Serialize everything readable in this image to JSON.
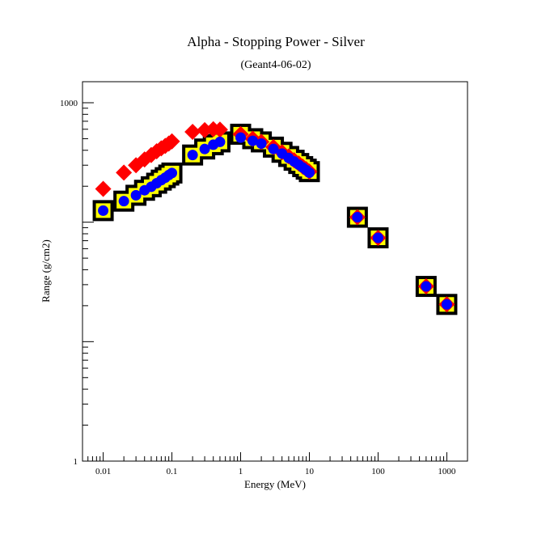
{
  "chart_data": {
    "type": "scatter",
    "title": "Alpha - Stopping Power - Silver",
    "subtitle": "(Geant4-06-02)",
    "xlabel": "Energy (MeV)",
    "ylabel": "Range (g/cm2)",
    "x_scale": "log",
    "y_scale": "log",
    "xlim": [
      0.005,
      2000
    ],
    "ylim": [
      1,
      1500
    ],
    "x_tick_labels": [
      {
        "value": 0.01,
        "label": "0.01"
      },
      {
        "value": 0.1,
        "label": "0.1"
      },
      {
        "value": 1,
        "label": "1"
      },
      {
        "value": 10,
        "label": "10"
      },
      {
        "value": 100,
        "label": "100"
      },
      {
        "value": 1000,
        "label": "1000"
      }
    ],
    "y_tick_labels": [
      {
        "value": 1,
        "label": "1"
      },
      {
        "value": 1000,
        "label": "1000"
      }
    ],
    "grid": false,
    "legend": "none",
    "series": [
      {
        "marker": "square",
        "fill": "#ffff00",
        "stroke": "#000000",
        "points": [
          [
            0.01,
            125
          ],
          [
            0.02,
            150
          ],
          [
            0.03,
            168
          ],
          [
            0.04,
            185
          ],
          [
            0.05,
            198
          ],
          [
            0.06,
            212
          ],
          [
            0.07,
            225
          ],
          [
            0.08,
            236
          ],
          [
            0.09,
            248
          ],
          [
            0.1,
            258
          ],
          [
            0.2,
            365
          ],
          [
            0.3,
            410
          ],
          [
            0.4,
            445
          ],
          [
            0.5,
            470
          ],
          [
            1,
            545
          ],
          [
            1.5,
            500
          ],
          [
            2,
            470
          ],
          [
            3,
            425
          ],
          [
            4,
            385
          ],
          [
            5,
            355
          ],
          [
            6,
            330
          ],
          [
            7,
            310
          ],
          [
            8,
            292
          ],
          [
            9,
            278
          ],
          [
            10,
            265
          ],
          [
            50,
            110
          ],
          [
            100,
            74
          ],
          [
            500,
            29
          ],
          [
            1000,
            20.5
          ]
        ]
      },
      {
        "marker": "diamond",
        "fill": "#ff0000",
        "points": [
          [
            0.01,
            190
          ],
          [
            0.02,
            260
          ],
          [
            0.03,
            300
          ],
          [
            0.04,
            335
          ],
          [
            0.05,
            365
          ],
          [
            0.06,
            392
          ],
          [
            0.07,
            415
          ],
          [
            0.08,
            435
          ],
          [
            0.09,
            455
          ],
          [
            0.1,
            475
          ],
          [
            0.2,
            570
          ],
          [
            0.3,
            590
          ],
          [
            0.4,
            600
          ],
          [
            0.5,
            595
          ],
          [
            1,
            545
          ],
          [
            1.5,
            500
          ],
          [
            2,
            470
          ],
          [
            3,
            425
          ],
          [
            4,
            385
          ],
          [
            5,
            355
          ],
          [
            6,
            330
          ],
          [
            7,
            310
          ],
          [
            8,
            292
          ],
          [
            9,
            278
          ],
          [
            10,
            265
          ],
          [
            50,
            110
          ],
          [
            100,
            74
          ],
          [
            500,
            29
          ],
          [
            1000,
            20.5
          ]
        ]
      },
      {
        "marker": "circle",
        "fill": "#0000ff",
        "points": [
          [
            0.01,
            125
          ],
          [
            0.02,
            150
          ],
          [
            0.03,
            168
          ],
          [
            0.04,
            185
          ],
          [
            0.05,
            198
          ],
          [
            0.06,
            212
          ],
          [
            0.07,
            225
          ],
          [
            0.08,
            236
          ],
          [
            0.09,
            248
          ],
          [
            0.1,
            258
          ],
          [
            0.2,
            365
          ],
          [
            0.3,
            410
          ],
          [
            0.4,
            445
          ],
          [
            0.5,
            470
          ],
          [
            1,
            510
          ],
          [
            1.5,
            480
          ],
          [
            2,
            455
          ],
          [
            3,
            410
          ],
          [
            4,
            375
          ],
          [
            5,
            345
          ],
          [
            6,
            322
          ],
          [
            7,
            303
          ],
          [
            8,
            287
          ],
          [
            9,
            273
          ],
          [
            10,
            260
          ],
          [
            50,
            110
          ],
          [
            100,
            74
          ],
          [
            500,
            29
          ],
          [
            1000,
            20.5
          ]
        ]
      }
    ]
  }
}
